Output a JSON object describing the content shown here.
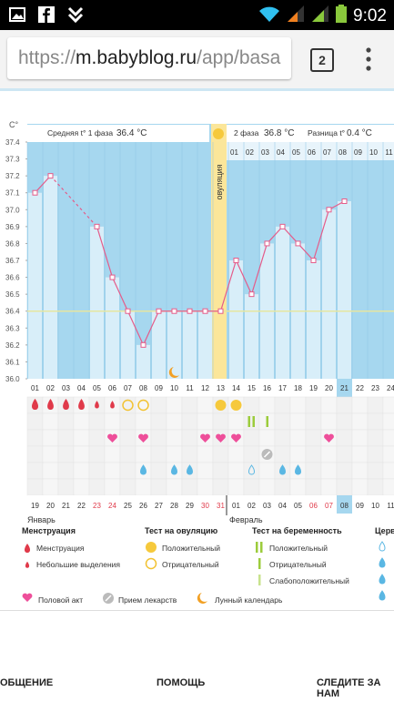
{
  "status_bar": {
    "time": "9:02"
  },
  "browser": {
    "url_protocol": "https://",
    "url_host": "m.babyblog.ru",
    "url_rest": "/app/basa",
    "tabs_count": "2"
  },
  "chart": {
    "unit_label": "C°",
    "phase1": {
      "label": "Средняя t° 1 фаза",
      "value": "36.4 °C"
    },
    "phase2": {
      "label": "2 фаза",
      "value": "36.8 °C"
    },
    "diff": {
      "label": "Разница t°",
      "value": "0.4 °C"
    },
    "ovulation_label": "овуляция",
    "day_numbers": [
      "01",
      "02",
      "03",
      "04",
      "05",
      "06",
      "07",
      "08",
      "09",
      "10",
      "11",
      "12",
      "13",
      "14",
      "15",
      "16",
      "17",
      "18",
      "19",
      "20",
      "21",
      "22",
      "23",
      "24"
    ],
    "phase2_top_days": [
      "01",
      "02",
      "03",
      "04",
      "05",
      "06",
      "07",
      "08",
      "09",
      "10",
      "11"
    ],
    "date_numbers": [
      "19",
      "20",
      "21",
      "22",
      "23",
      "24",
      "25",
      "26",
      "27",
      "28",
      "29",
      "30",
      "31",
      "01",
      "02",
      "03",
      "04",
      "05",
      "06",
      "07",
      "08",
      "09",
      "10",
      "11"
    ],
    "date_red": [
      4,
      5,
      11,
      12,
      18,
      19
    ],
    "highlight_day_index": 20,
    "month_jan": "Январь",
    "month_feb": "Февраль"
  },
  "chart_data": {
    "type": "line",
    "title": "",
    "ylabel": "C°",
    "ylim": [
      36.0,
      37.4
    ],
    "yticks": [
      "37.4",
      "37.3",
      "37.2",
      "37.1",
      "37.0",
      "36.9",
      "36.8",
      "36.7",
      "36.6",
      "36.5",
      "36.4",
      "36.3",
      "36.2",
      "36.1",
      "36.0"
    ],
    "x": [
      1,
      2,
      3,
      4,
      5,
      6,
      7,
      8,
      9,
      10,
      11,
      12,
      13,
      14,
      15,
      16,
      17,
      18,
      19,
      20,
      21
    ],
    "values": [
      37.1,
      37.2,
      null,
      null,
      36.9,
      36.6,
      36.4,
      36.2,
      36.4,
      36.4,
      36.4,
      36.4,
      36.4,
      36.7,
      36.5,
      36.8,
      36.9,
      36.8,
      36.7,
      37.0,
      37.05
    ],
    "coverline": 36.4,
    "ovulation_day": 13
  },
  "legend": {
    "menstruation": {
      "title": "Менструация",
      "item1": "Менструация",
      "item2": "Небольшие выделения"
    },
    "ovulation_test": {
      "title": "Тест на овуляцию",
      "item1": "Положительный",
      "item2": "Отрицательный"
    },
    "pregnancy_test": {
      "title": "Тест на беременность",
      "item1": "Положительный",
      "item2": "Отрицательный",
      "item3": "Слабоположительный"
    },
    "cervix": {
      "title": "Церв"
    },
    "other": {
      "item1": "Половой акт",
      "item2": "Прием лекарств",
      "item3": "Лунный календарь"
    }
  },
  "footer": {
    "link1": "ОБЩЕНИЕ",
    "link2": "ПОМОЩЬ",
    "link3": "СЛЕДИТЕ ЗА НАМ"
  },
  "colors": {
    "chart_bg": "#9fd3ef",
    "column": "#d8eef9",
    "line": "#e55c8a",
    "ovulation": "#f8e08e",
    "accent": "#5ab7e3"
  }
}
